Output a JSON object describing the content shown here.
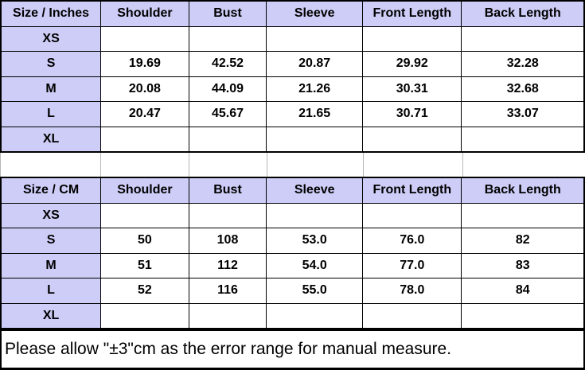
{
  "colors": {
    "header_bg": "#cdcdf7",
    "border": "#000000",
    "gap_line": "#b7b7b7",
    "text": "#000000"
  },
  "chart_data": [
    {
      "type": "table",
      "title": "Size / Inches",
      "columns": [
        "Size / Inches",
        "Shoulder",
        "Bust",
        "Sleeve",
        "Front Length",
        "Back Length"
      ],
      "rows": [
        [
          "XS",
          "",
          "",
          "",
          "",
          ""
        ],
        [
          "S",
          "19.69",
          "42.52",
          "20.87",
          "29.92",
          "32.28"
        ],
        [
          "M",
          "20.08",
          "44.09",
          "21.26",
          "30.31",
          "32.68"
        ],
        [
          "L",
          "20.47",
          "45.67",
          "21.65",
          "30.71",
          "33.07"
        ],
        [
          "XL",
          "",
          "",
          "",
          "",
          ""
        ]
      ]
    },
    {
      "type": "table",
      "title": "Size / CM",
      "columns": [
        "Size / CM",
        "Shoulder",
        "Bust",
        "Sleeve",
        "Front Length",
        "Back Length"
      ],
      "rows": [
        [
          "XS",
          "",
          "",
          "",
          "",
          ""
        ],
        [
          "S",
          "50",
          "108",
          "53.0",
          "76.0",
          "82"
        ],
        [
          "M",
          "51",
          "112",
          "54.0",
          "77.0",
          "83"
        ],
        [
          "L",
          "52",
          "116",
          "55.0",
          "78.0",
          "84"
        ],
        [
          "XL",
          "",
          "",
          "",
          "",
          ""
        ]
      ]
    }
  ],
  "note": {
    "text": "Please allow \"±3\"cm as the error range for manual measure."
  }
}
